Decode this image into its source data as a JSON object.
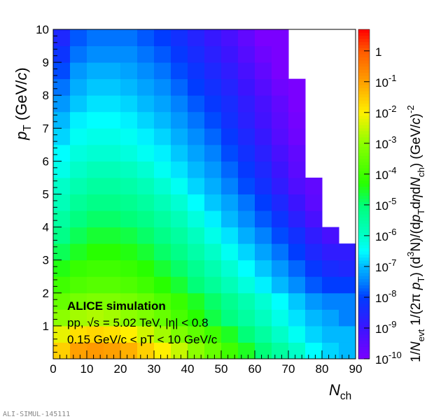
{
  "chart_data": {
    "type": "heatmap",
    "xlabel": [
      {
        "t": "N",
        "s": "i"
      },
      {
        "t": "ch",
        "s": "sub"
      }
    ],
    "ylabel": [
      {
        "t": "p",
        "s": "i"
      },
      {
        "t": "T",
        "s": "sub"
      },
      {
        "t": " (GeV/",
        "s": "n"
      },
      {
        "t": "c",
        "s": "i"
      },
      {
        "t": ")",
        "s": "n"
      }
    ],
    "zlabel": [
      {
        "t": "1/",
        "s": "n"
      },
      {
        "t": "N",
        "s": "i"
      },
      {
        "t": "evt",
        "s": "sub"
      },
      {
        "t": " 1/(2π ",
        "s": "n"
      },
      {
        "t": "p",
        "s": "i"
      },
      {
        "t": "T",
        "s": "sub"
      },
      {
        "t": ") (d",
        "s": "n"
      },
      {
        "t": "3",
        "s": "sup"
      },
      {
        "t": "N)/(d",
        "s": "n"
      },
      {
        "t": "p",
        "s": "i"
      },
      {
        "t": "T",
        "s": "sub"
      },
      {
        "t": "d",
        "s": "n"
      },
      {
        "t": "η",
        "s": "i"
      },
      {
        "t": "d",
        "s": "n"
      },
      {
        "t": "N",
        "s": "i"
      },
      {
        "t": "ch",
        "s": "sub"
      },
      {
        "t": ") (GeV/",
        "s": "n"
      },
      {
        "t": "c",
        "s": "i"
      },
      {
        "t": ")",
        "s": "n"
      },
      {
        "t": "-2",
        "s": "sup"
      }
    ],
    "xlim": [
      0,
      90
    ],
    "ylim": [
      0,
      10
    ],
    "zscale": "log",
    "zlim": [
      1e-10,
      5
    ],
    "xticks": [
      "0",
      "10",
      "20",
      "30",
      "40",
      "50",
      "60",
      "70",
      "80",
      "90"
    ],
    "yticks": [
      "1",
      "2",
      "3",
      "4",
      "5",
      "6",
      "7",
      "8",
      "9",
      "10"
    ],
    "zticks": [
      {
        "base": "1",
        "exp": ""
      },
      {
        "base": "10",
        "exp": "-1"
      },
      {
        "base": "10",
        "exp": "-2"
      },
      {
        "base": "10",
        "exp": "-3"
      },
      {
        "base": "10",
        "exp": "-4"
      },
      {
        "base": "10",
        "exp": "-5"
      },
      {
        "base": "10",
        "exp": "-6"
      },
      {
        "base": "10",
        "exp": "-7"
      },
      {
        "base": "10",
        "exp": "-8"
      },
      {
        "base": "10",
        "exp": "-9"
      },
      {
        "base": "10",
        "exp": "-10"
      }
    ],
    "x_bin_edges": [
      0,
      5,
      10,
      15,
      20,
      25,
      30,
      35,
      40,
      45,
      50,
      55,
      60,
      65,
      70,
      75,
      80,
      85,
      90
    ],
    "y_bin_edges": [
      0,
      0.5,
      1,
      1.5,
      2,
      2.5,
      3,
      3.5,
      4,
      4.5,
      5,
      5.5,
      6,
      6.5,
      7,
      7.5,
      8,
      8.5,
      9,
      9.5,
      10
    ],
    "log10_values_by_pt_row": [
      [
        -1.6,
        -1.0,
        -0.9,
        -1.0,
        -1.2,
        -1.6,
        -2.0,
        -2.5,
        -3.0,
        -3.5,
        -4.0,
        -4.5,
        -5.0,
        -5.5,
        -6.0,
        -6.5,
        -6.8,
        -7.0
      ],
      [
        -2.2,
        -1.8,
        -1.7,
        -1.8,
        -2.0,
        -2.4,
        -2.8,
        -3.2,
        -3.6,
        -4.0,
        -4.5,
        -5.0,
        -5.5,
        -6.0,
        -6.4,
        -6.8,
        -7.0,
        -7.0
      ],
      [
        -3.0,
        -2.8,
        -2.7,
        -2.8,
        -3.0,
        -3.2,
        -3.5,
        -3.9,
        -4.3,
        -4.7,
        -5.1,
        -5.5,
        -5.9,
        -6.3,
        -6.7,
        -7.0,
        -7.2,
        -7.5
      ],
      [
        -3.5,
        -3.3,
        -3.2,
        -3.2,
        -3.3,
        -3.5,
        -3.8,
        -4.1,
        -4.5,
        -4.9,
        -5.3,
        -5.7,
        -6.1,
        -6.5,
        -6.9,
        -7.3,
        -7.5,
        -7.5
      ],
      [
        -4.0,
        -3.8,
        -3.7,
        -3.7,
        -3.8,
        -4.0,
        -4.3,
        -4.6,
        -5.0,
        -5.4,
        -5.8,
        -6.2,
        -6.6,
        -7.0,
        -7.4,
        -7.8,
        -8.0,
        -8.0
      ],
      [
        -4.4,
        -4.1,
        -4.0,
        -4.0,
        -4.1,
        -4.3,
        -4.6,
        -4.9,
        -5.3,
        -5.7,
        -6.1,
        -6.5,
        -6.9,
        -7.3,
        -7.7,
        -8.1,
        -8.4,
        -8.5
      ],
      [
        -4.8,
        -4.5,
        -4.3,
        -4.3,
        -4.4,
        -4.6,
        -4.9,
        -5.2,
        -5.6,
        -6.0,
        -6.4,
        -6.8,
        -7.2,
        -7.6,
        -8.0,
        -8.5,
        -8.8,
        -8.8
      ],
      [
        -5.2,
        -4.8,
        -4.6,
        -4.6,
        -4.7,
        -4.9,
        -5.2,
        -5.5,
        -5.9,
        -6.3,
        -6.7,
        -7.1,
        -7.5,
        -7.9,
        -8.3,
        -8.8,
        -9.2,
        null
      ],
      [
        -5.5,
        -5.1,
        -4.9,
        -4.9,
        -5.0,
        -5.2,
        -5.5,
        -5.8,
        -6.2,
        -6.6,
        -7.0,
        -7.4,
        -7.8,
        -8.2,
        -8.7,
        -9.2,
        null,
        null
      ],
      [
        -5.8,
        -5.4,
        -5.2,
        -5.2,
        -5.3,
        -5.5,
        -5.8,
        -6.1,
        -6.5,
        -6.9,
        -7.2,
        -7.6,
        -8.0,
        -8.5,
        -9.0,
        -9.5,
        null,
        null
      ],
      [
        -6.0,
        -5.7,
        -5.5,
        -5.5,
        -5.6,
        -5.8,
        -6.1,
        -6.4,
        -6.8,
        -7.1,
        -7.5,
        -7.9,
        -8.3,
        -8.8,
        -9.3,
        -9.6,
        null,
        null
      ],
      [
        -6.3,
        -6.0,
        -5.8,
        -5.8,
        -5.9,
        -6.1,
        -6.4,
        -6.7,
        -7.0,
        -7.3,
        -7.7,
        -8.1,
        -8.5,
        -9.0,
        -9.5,
        null,
        null,
        null
      ],
      [
        -6.5,
        -6.2,
        -6.1,
        -6.1,
        -6.2,
        -6.4,
        -6.6,
        -6.9,
        -7.2,
        -7.5,
        -7.9,
        -8.3,
        -8.7,
        -9.2,
        -9.6,
        null,
        null,
        null
      ],
      [
        -6.8,
        -6.4,
        -6.3,
        -6.3,
        -6.4,
        -6.6,
        -6.8,
        -7.1,
        -7.4,
        -7.7,
        -8.1,
        -8.5,
        -8.9,
        -9.4,
        -9.8,
        null,
        null,
        null
      ],
      [
        -7.0,
        -6.6,
        -6.5,
        -6.5,
        -6.6,
        -6.8,
        -7.0,
        -7.3,
        -7.6,
        -7.9,
        -8.3,
        -8.7,
        -9.1,
        -9.5,
        -9.9,
        null,
        null,
        null
      ],
      [
        -7.3,
        -6.9,
        -6.7,
        -6.7,
        -6.8,
        -7.0,
        -7.2,
        -7.5,
        -7.8,
        -8.1,
        -8.4,
        -8.8,
        -9.2,
        -9.6,
        -10.0,
        null,
        null,
        null
      ],
      [
        -7.6,
        -7.1,
        -6.9,
        -6.9,
        -7.0,
        -7.2,
        -7.4,
        -7.7,
        -8.0,
        -8.3,
        -8.6,
        -9.0,
        -9.4,
        -9.8,
        -10.0,
        null,
        null,
        null
      ],
      [
        -7.9,
        -7.3,
        -7.1,
        -7.1,
        -7.2,
        -7.4,
        -7.6,
        -7.9,
        -8.2,
        -8.5,
        -8.8,
        -9.2,
        -9.6,
        -10.0,
        null,
        null,
        null,
        null
      ],
      [
        -8.2,
        -7.6,
        -7.4,
        -7.4,
        -7.4,
        -7.6,
        -7.8,
        -8.1,
        -8.4,
        -8.7,
        -9.0,
        -9.4,
        -9.8,
        -10.0,
        null,
        null,
        null,
        null
      ],
      [
        -8.5,
        -7.8,
        -7.6,
        -7.6,
        -7.6,
        -7.8,
        -8.0,
        -8.3,
        -8.6,
        -8.9,
        -9.2,
        -9.6,
        -10.0,
        -10.0,
        null,
        null,
        null,
        null
      ]
    ],
    "palette": "rainbow",
    "annotations": {
      "title": "ALICE simulation",
      "line1": "pp, √s = 5.02 TeV, |η| < 0.8",
      "line2": "0.15 GeV/c < pT < 10 GeV/c"
    }
  },
  "footer": "ALI-SIMUL-145111"
}
